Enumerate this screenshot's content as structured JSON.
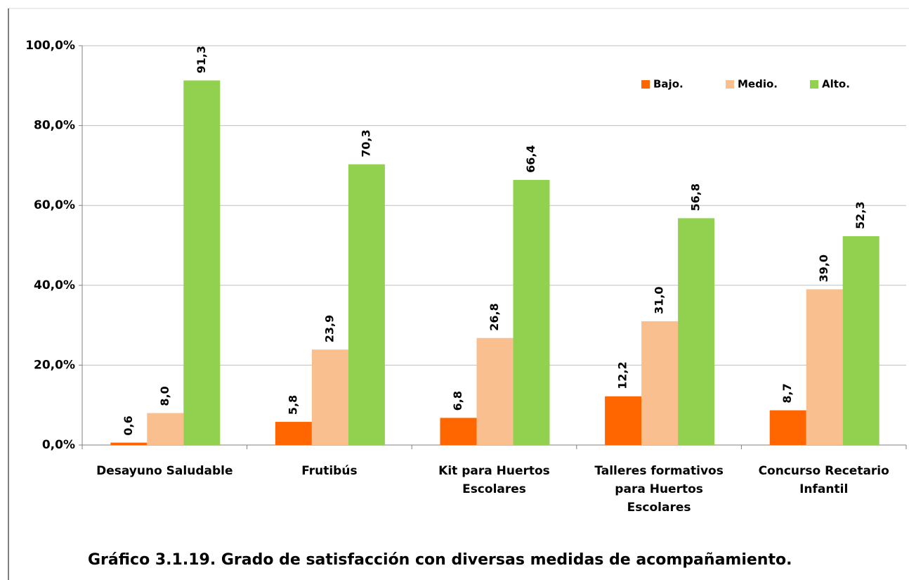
{
  "chart_data": {
    "type": "bar",
    "caption": "Gráfico 3.1.19. Grado de satisfacción con diversas medidas de acompañamiento.",
    "categories": [
      [
        "Desayuno Saludable"
      ],
      [
        "Frutibús"
      ],
      [
        "Kit para Huertos",
        "Escolares"
      ],
      [
        "Talleres formativos",
        "para Huertos",
        "Escolares"
      ],
      [
        "Concurso Recetario",
        "Infantil"
      ]
    ],
    "series": [
      {
        "name": "Bajo.",
        "color": "#FF6600",
        "values": [
          0.6,
          5.8,
          6.8,
          12.2,
          8.7
        ],
        "value_labels": [
          "0,6",
          "5,8",
          "6,8",
          "12,2",
          "8,7"
        ]
      },
      {
        "name": "Medio.",
        "color": "#F9BF8F",
        "values": [
          8.0,
          23.9,
          26.8,
          31.0,
          39.0
        ],
        "value_labels": [
          "8,0",
          "23,9",
          "26,8",
          "31,0",
          "39,0"
        ]
      },
      {
        "name": "Alto.",
        "color": "#92D050",
        "values": [
          91.3,
          70.3,
          66.4,
          56.8,
          52.3
        ],
        "value_labels": [
          "91,3",
          "70,3",
          "66,4",
          "56,8",
          "52,3"
        ]
      }
    ],
    "ylim": [
      0,
      100
    ],
    "yticks": [
      {
        "value": 0,
        "label": "0,0%"
      },
      {
        "value": 20,
        "label": "20,0%"
      },
      {
        "value": 40,
        "label": "40,0%"
      },
      {
        "value": 60,
        "label": "60,0%"
      },
      {
        "value": 80,
        "label": "80,0%"
      },
      {
        "value": 100,
        "label": "100,0%"
      }
    ],
    "grid": true,
    "legend": "top-right"
  }
}
